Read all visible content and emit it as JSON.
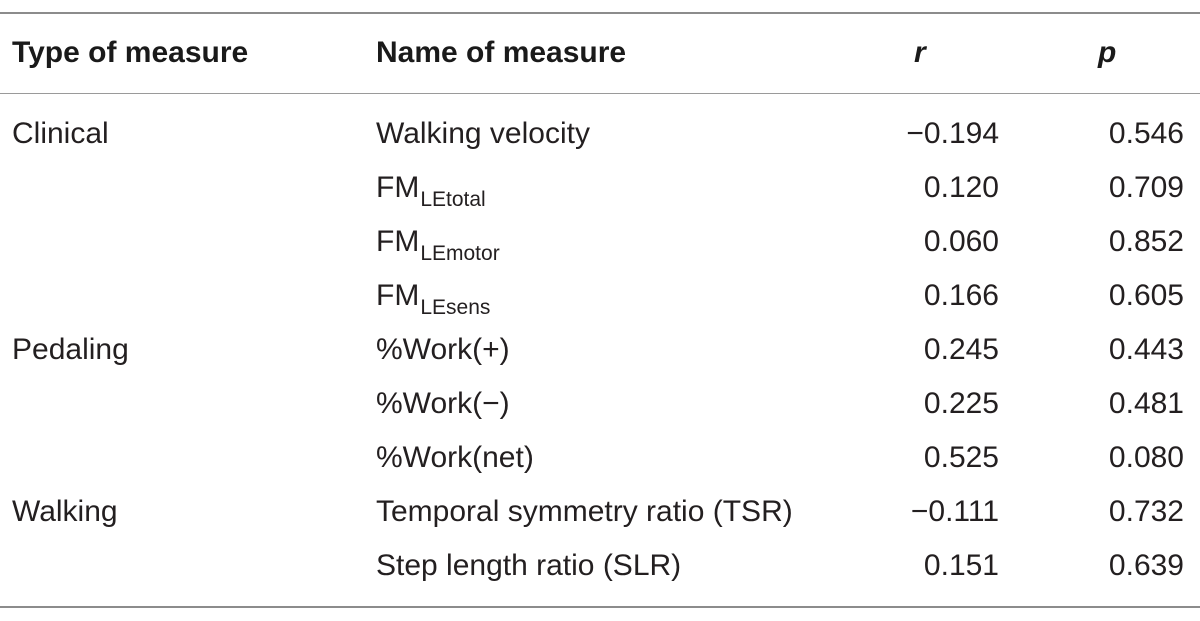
{
  "table": {
    "headers": {
      "type": "Type of measure",
      "name": "Name of measure",
      "r": "r",
      "p": "p"
    },
    "rows": [
      {
        "type": "Clinical",
        "name": "Walking velocity",
        "name_sub": "",
        "r": "−0.194",
        "p": "0.546"
      },
      {
        "type": "",
        "name": "FM",
        "name_sub": "LEtotal",
        "r": "0.120",
        "p": "0.709"
      },
      {
        "type": "",
        "name": "FM",
        "name_sub": "LEmotor",
        "r": "0.060",
        "p": "0.852"
      },
      {
        "type": "",
        "name": "FM",
        "name_sub": "LEsens",
        "r": "0.166",
        "p": "0.605"
      },
      {
        "type": "Pedaling",
        "name": "%Work(+)",
        "name_sub": "",
        "r": "0.245",
        "p": "0.443"
      },
      {
        "type": "",
        "name": "%Work(−)",
        "name_sub": "",
        "r": "0.225",
        "p": "0.481"
      },
      {
        "type": "",
        "name": "%Work(net)",
        "name_sub": "",
        "r": "0.525",
        "p": "0.080"
      },
      {
        "type": "Walking",
        "name": "Temporal symmetry ratio (TSR)",
        "name_sub": "",
        "r": "−0.111",
        "p": "0.732"
      },
      {
        "type": "",
        "name": "Step length ratio (SLR)",
        "name_sub": "",
        "r": "0.151",
        "p": "0.639"
      }
    ]
  }
}
